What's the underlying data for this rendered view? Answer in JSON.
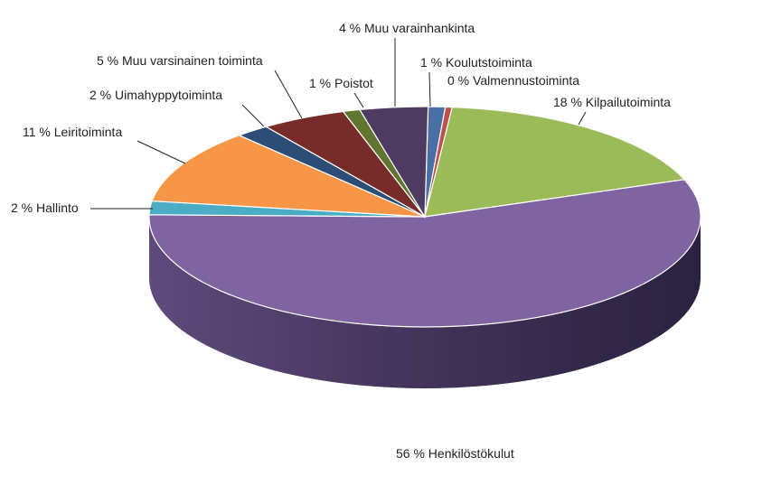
{
  "chart_data": {
    "type": "pie",
    "three_d": true,
    "legend": "none",
    "slices": [
      {
        "label": "1 % Koulutstoiminta",
        "value": 1,
        "color": "#4a6fa5"
      },
      {
        "label": "0 % Valmennustoiminta",
        "value": 0.4,
        "color": "#c0504d"
      },
      {
        "label": "18 % Kilpailutoiminta",
        "value": 18,
        "color": "#9bbb59"
      },
      {
        "label": "56 % Henkilöstökulut",
        "value": 56,
        "color": "#8064a2"
      },
      {
        "label": "2 % Hallinto",
        "value": 2,
        "color": "#4bacc6"
      },
      {
        "label": "11 % Leiritoiminta",
        "value": 11,
        "color": "#f79646"
      },
      {
        "label": "2 % Uimahyppytoiminta",
        "value": 2,
        "color": "#2c4d75"
      },
      {
        "label": "5 % Muu varsinainen toiminta",
        "value": 5,
        "color": "#772c2a"
      },
      {
        "label": "1 % Poistot",
        "value": 1,
        "color": "#5f7530"
      },
      {
        "label": "4 % Muu varainhankinta",
        "value": 4,
        "color": "#4d3b62"
      }
    ]
  }
}
